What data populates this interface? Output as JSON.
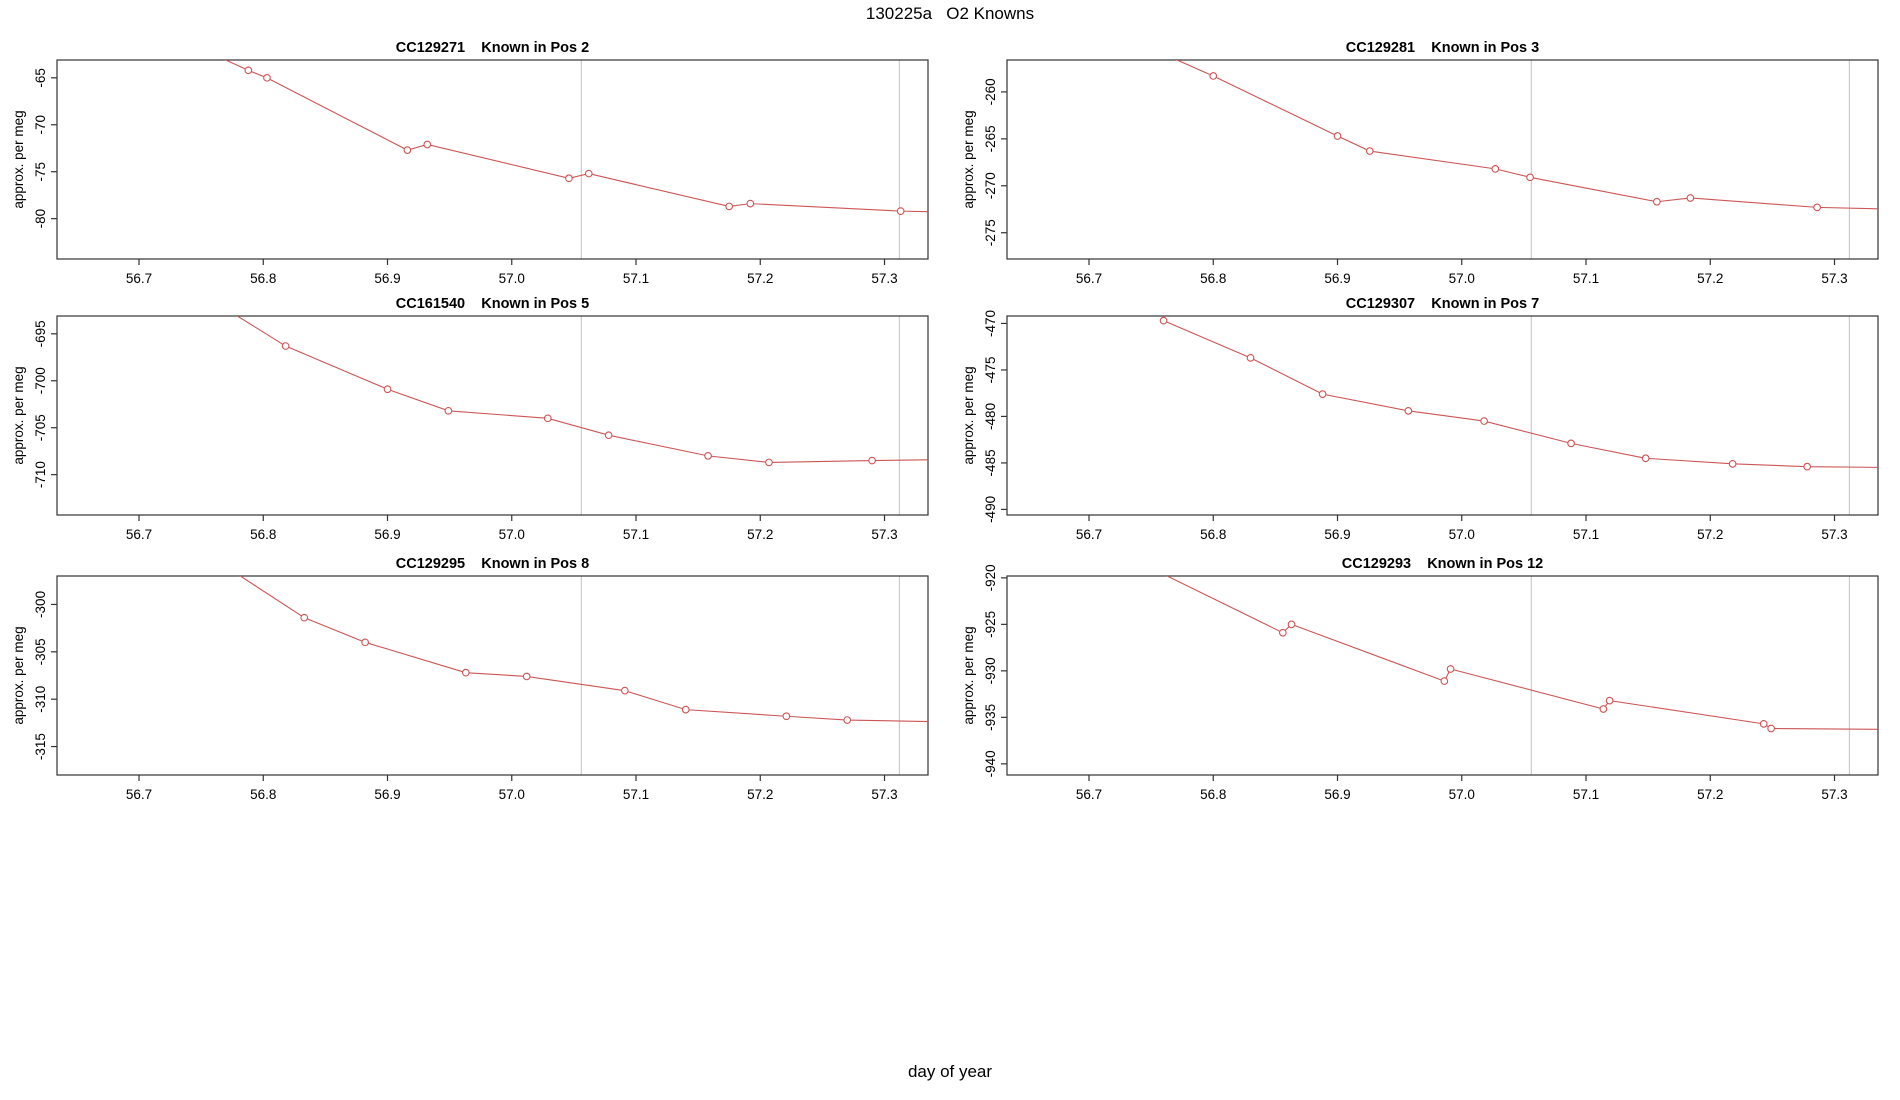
{
  "figure": {
    "title": "130225a   O2 Knowns",
    "xlabel": "day of year",
    "background": "#ffffff"
  },
  "style": {
    "series_color": "#CD5555",
    "marker": "open-circle",
    "marker_fill": "#ffffff",
    "axis_color": "#333333",
    "ref_line_color": "#CCCCCC",
    "ref_lines_x": [
      57.056,
      57.312
    ]
  },
  "chart_data": [
    {
      "type": "line",
      "title": "CC129271    Known in Pos 2",
      "sample_id": "CC129271",
      "position_label": "Known in Pos 2",
      "ylabel": "approx. per meg",
      "xlim": [
        56.634,
        57.335
      ],
      "ylim": [
        -84.3,
        -63.1
      ],
      "x_ticks": [
        56.7,
        56.8,
        56.9,
        57.0,
        57.1,
        57.2,
        57.3
      ],
      "y_ticks": [
        -65,
        -70,
        -75,
        -80
      ],
      "x": [
        56.788,
        56.803,
        56.916,
        56.932,
        57.046,
        57.062,
        57.175,
        57.192,
        57.313
      ],
      "y": [
        -64.2,
        -65.0,
        -72.7,
        -72.1,
        -75.7,
        -75.2,
        -78.7,
        -78.4,
        -79.2
      ],
      "line_pre": [
        56.74,
        -61.3
      ],
      "line_post": [
        57.35,
        -79.3
      ]
    },
    {
      "type": "line",
      "title": "CC129281    Known in Pos 3",
      "sample_id": "CC129281",
      "position_label": "Known in Pos 3",
      "ylabel": "approx. per meg",
      "xlim": [
        56.634,
        57.335
      ],
      "ylim": [
        -277.8,
        -256.6
      ],
      "x_ticks": [
        56.7,
        56.8,
        56.9,
        57.0,
        57.1,
        57.2,
        57.3
      ],
      "y_ticks": [
        -260,
        -265,
        -270,
        -275
      ],
      "x": [
        56.8,
        56.9,
        56.926,
        57.027,
        57.055,
        57.157,
        57.184,
        57.286
      ],
      "y": [
        -258.3,
        -264.7,
        -266.3,
        -268.2,
        -269.1,
        -271.7,
        -271.3,
        -272.3
      ],
      "line_pre": [
        56.74,
        -254.8
      ],
      "line_post": [
        57.35,
        -272.5
      ]
    },
    {
      "type": "line",
      "title": "CC161540    Known in Pos 5",
      "sample_id": "CC161540",
      "position_label": "Known in Pos 5",
      "ylabel": "approx. per meg",
      "xlim": [
        56.634,
        57.335
      ],
      "ylim": [
        -714.3,
        -693.1
      ],
      "x_ticks": [
        56.7,
        56.8,
        56.9,
        57.0,
        57.1,
        57.2,
        57.3
      ],
      "y_ticks": [
        -695,
        -700,
        -705,
        -710
      ],
      "x": [
        56.818,
        56.9,
        56.949,
        57.029,
        57.078,
        57.158,
        57.207,
        57.29
      ],
      "y": [
        -696.3,
        -700.9,
        -703.2,
        -704.0,
        -705.8,
        -708.0,
        -708.7,
        -708.5
      ],
      "line_pre": [
        56.75,
        -690.7
      ],
      "line_post": [
        57.35,
        -708.4
      ]
    },
    {
      "type": "line",
      "title": "CC129307    Known in Pos 7",
      "sample_id": "CC129307",
      "position_label": "Known in Pos 7",
      "ylabel": "approx. per meg",
      "xlim": [
        56.634,
        57.335
      ],
      "ylim": [
        -490.6,
        -469.2
      ],
      "x_ticks": [
        56.7,
        56.8,
        56.9,
        57.0,
        57.1,
        57.2,
        57.3
      ],
      "y_ticks": [
        -470,
        -475,
        -480,
        -485,
        -490
      ],
      "x": [
        56.76,
        56.83,
        56.888,
        56.957,
        57.018,
        57.088,
        57.148,
        57.218,
        57.278
      ],
      "y": [
        -469.7,
        -473.7,
        -477.6,
        -479.4,
        -480.5,
        -482.9,
        -484.5,
        -485.1,
        -485.4
      ],
      "line_post": [
        57.35,
        -485.5
      ]
    },
    {
      "type": "line",
      "title": "CC129295    Known in Pos 8",
      "sample_id": "CC129295",
      "position_label": "Known in Pos 8",
      "ylabel": "approx. per meg",
      "xlim": [
        56.634,
        57.335
      ],
      "ylim": [
        -318.0,
        -297.0
      ],
      "x_ticks": [
        56.7,
        56.8,
        56.9,
        57.0,
        57.1,
        57.2,
        57.3
      ],
      "y_ticks": [
        -300,
        -305,
        -310,
        -315
      ],
      "x": [
        56.833,
        56.882,
        56.963,
        57.012,
        57.091,
        57.14,
        57.221,
        57.27
      ],
      "y": [
        -301.4,
        -304.0,
        -307.2,
        -307.6,
        -309.1,
        -311.1,
        -311.8,
        -312.2
      ],
      "line_pre": [
        56.75,
        -294.3
      ],
      "line_post": [
        57.35,
        -312.4
      ]
    },
    {
      "type": "line",
      "title": "CC129293    Known in Pos 12",
      "sample_id": "CC129293",
      "position_label": "Known in Pos 12",
      "ylabel": "approx. per meg",
      "xlim": [
        56.634,
        57.335
      ],
      "ylim": [
        -941.2,
        -919.8
      ],
      "x_ticks": [
        56.7,
        56.8,
        56.9,
        57.0,
        57.1,
        57.2,
        57.3
      ],
      "y_ticks": [
        -920,
        -925,
        -930,
        -935,
        -940
      ],
      "x": [
        56.856,
        56.863,
        56.986,
        56.991,
        57.114,
        57.119,
        57.243,
        57.249
      ],
      "y": [
        -925.9,
        -925.0,
        -931.1,
        -929.8,
        -934.1,
        -933.2,
        -935.7,
        -936.2
      ],
      "line_pre": [
        56.74,
        -918.3
      ],
      "line_post": [
        57.35,
        -936.3
      ]
    }
  ]
}
